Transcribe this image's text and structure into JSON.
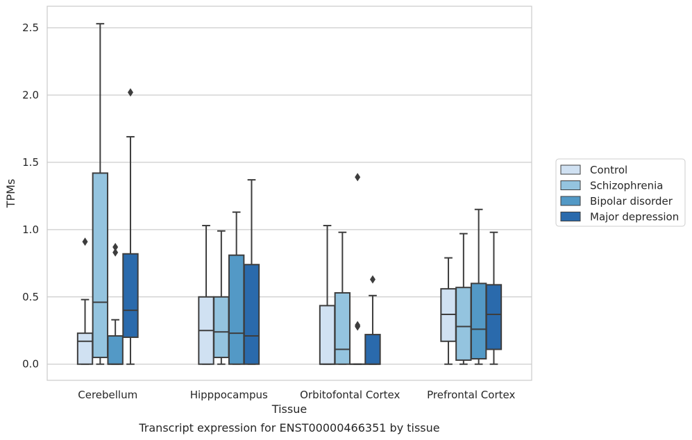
{
  "caption": "Transcript expression for ENST00000466351 by tissue",
  "chart_data": {
    "type": "boxplot",
    "xlabel": "Tissue",
    "ylabel": "TPMs",
    "ylim": [
      -0.12,
      2.66
    ],
    "yticks": [
      0.0,
      0.5,
      1.0,
      1.5,
      2.0,
      2.5
    ],
    "ytick_labels": [
      "0.0",
      "0.5",
      "1.0",
      "1.5",
      "2.0",
      "2.5"
    ],
    "grid": "horizontal",
    "legend_position": "right",
    "categories": [
      "Cerebellum",
      "Hipppocampus",
      "Orbitofontal Cortex",
      "Prefrontal Cortex"
    ],
    "series": [
      {
        "name": "Control",
        "color": "#d0e1f2",
        "boxes": [
          {
            "whislo": 0.0,
            "q1": 0.0,
            "median": 0.17,
            "q3": 0.23,
            "whishi": 0.48,
            "fliers": [
              0.91
            ]
          },
          {
            "whislo": 0.0,
            "q1": 0.0,
            "median": 0.25,
            "q3": 0.5,
            "whishi": 1.03,
            "fliers": []
          },
          {
            "whislo": 0.0,
            "q1": 0.0,
            "median": 0.0,
            "q3": 0.435,
            "whishi": 1.03,
            "fliers": []
          },
          {
            "whislo": 0.0,
            "q1": 0.17,
            "median": 0.37,
            "q3": 0.56,
            "whishi": 0.79,
            "fliers": []
          }
        ]
      },
      {
        "name": "Schizophrenia",
        "color": "#94c4df",
        "boxes": [
          {
            "whislo": 0.0,
            "q1": 0.05,
            "median": 0.46,
            "q3": 1.42,
            "whishi": 2.53,
            "fliers": []
          },
          {
            "whislo": 0.0,
            "q1": 0.05,
            "median": 0.24,
            "q3": 0.5,
            "whishi": 0.99,
            "fliers": []
          },
          {
            "whislo": 0.0,
            "q1": 0.0,
            "median": 0.11,
            "q3": 0.53,
            "whishi": 0.98,
            "fliers": []
          },
          {
            "whislo": 0.0,
            "q1": 0.03,
            "median": 0.28,
            "q3": 0.57,
            "whishi": 0.97,
            "fliers": []
          }
        ]
      },
      {
        "name": "Bipolar disorder",
        "color": "#5399c6",
        "boxes": [
          {
            "whislo": 0.0,
            "q1": 0.0,
            "median": 0.0,
            "q3": 0.21,
            "whishi": 0.33,
            "fliers": [
              0.83,
              0.87
            ]
          },
          {
            "whislo": 0.0,
            "q1": 0.0,
            "median": 0.23,
            "q3": 0.81,
            "whishi": 1.13,
            "fliers": []
          },
          {
            "whislo": 0.0,
            "q1": 0.0,
            "median": 0.0,
            "q3": 0.0,
            "whishi": 0.0,
            "fliers": [
              0.28,
              0.29,
              1.39
            ]
          },
          {
            "whislo": 0.0,
            "q1": 0.04,
            "median": 0.26,
            "q3": 0.6,
            "whishi": 1.15,
            "fliers": []
          }
        ]
      },
      {
        "name": "Major depression",
        "color": "#2a6aac",
        "boxes": [
          {
            "whislo": 0.0,
            "q1": 0.2,
            "median": 0.4,
            "q3": 0.82,
            "whishi": 1.69,
            "fliers": [
              2.02
            ]
          },
          {
            "whislo": 0.0,
            "q1": 0.0,
            "median": 0.21,
            "q3": 0.74,
            "whishi": 1.37,
            "fliers": []
          },
          {
            "whislo": 0.0,
            "q1": 0.0,
            "median": 0.0,
            "q3": 0.22,
            "whishi": 0.51,
            "fliers": [
              0.63
            ]
          },
          {
            "whislo": 0.0,
            "q1": 0.11,
            "median": 0.37,
            "q3": 0.59,
            "whishi": 0.98,
            "fliers": []
          }
        ]
      }
    ]
  }
}
